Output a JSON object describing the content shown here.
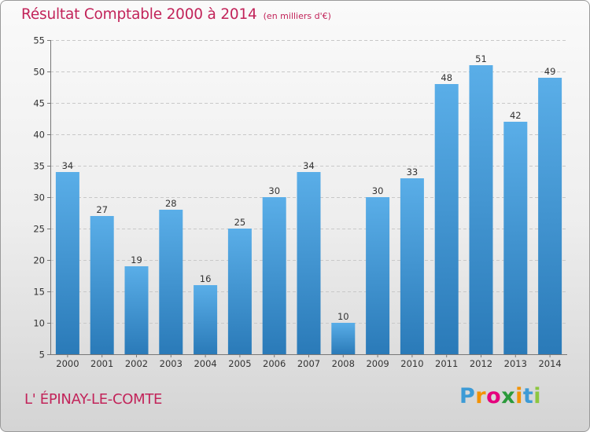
{
  "header": {
    "title": "Résultat Comptable 2000 à 2014",
    "subtitle": "(en milliers d'€)"
  },
  "footer": {
    "commune": "L' ÉPINAY-LE-COMTE",
    "logo": {
      "letters": [
        "P",
        "r",
        "o",
        "x",
        "i",
        "t",
        "i"
      ],
      "colors": [
        "#3d9bd6",
        "#f39200",
        "#e5007d",
        "#2b9a3b",
        "#f39200",
        "#3d9bd6",
        "#8dc63f"
      ]
    }
  },
  "chart_data": {
    "type": "bar",
    "title": "Résultat Comptable 2000 à 2014",
    "subtitle": "(en milliers d'€)",
    "categories": [
      "2000",
      "2001",
      "2002",
      "2003",
      "2004",
      "2005",
      "2006",
      "2007",
      "2008",
      "2009",
      "2010",
      "2011",
      "2012",
      "2013",
      "2014"
    ],
    "values": [
      34,
      27,
      19,
      28,
      16,
      25,
      30,
      34,
      10,
      30,
      33,
      48,
      51,
      42,
      49
    ],
    "ylim": [
      5,
      55
    ],
    "yticks": [
      5,
      10,
      15,
      20,
      25,
      30,
      35,
      40,
      45,
      50,
      55
    ],
    "grid": true,
    "bar_color_light": "#5aaee8",
    "bar_color_dark": "#2a7ab8"
  }
}
